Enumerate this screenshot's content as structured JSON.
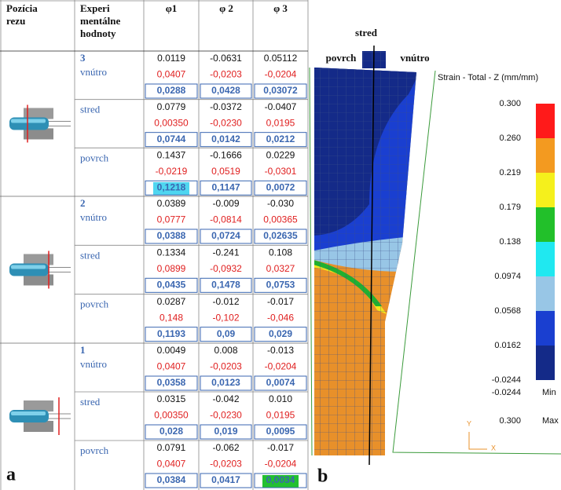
{
  "table": {
    "columns": [
      "Pozícia rezu",
      "Experi mentálne hodnoty",
      "φ1",
      "φ 2",
      "φ 3"
    ],
    "sections": [
      {
        "number": "3",
        "rows": [
          {
            "position": "vnútro",
            "lines": [
              [
                "0.0119",
                "-0.0631",
                "0.05112"
              ],
              [
                "0,0407",
                "-0,0203",
                "-0,0204"
              ],
              [
                "0,0288",
                "0,0428",
                "0,03072"
              ]
            ]
          },
          {
            "position": "stred",
            "lines": [
              [
                "0.0779",
                "-0.0372",
                "-0.0407"
              ],
              [
                "0,00350",
                "-0,0230",
                "0,0195"
              ],
              [
                "0,0744",
                "0,0142",
                "0,0212"
              ]
            ]
          },
          {
            "position": "povrch",
            "lines": [
              [
                "0.1437",
                "-0.1666",
                "0.0229"
              ],
              [
                "-0,0219",
                "0,0519",
                "-0,0301"
              ],
              [
                "0,1218",
                "0,1147",
                "0,0072"
              ]
            ]
          }
        ]
      },
      {
        "number": "2",
        "rows": [
          {
            "position": "vnútro",
            "lines": [
              [
                "0.0389",
                "-0.009",
                "-0.030"
              ],
              [
                "0,0777",
                "-0,0814",
                "0,00365"
              ],
              [
                "0,0388",
                "0,0724",
                "0,02635"
              ]
            ]
          },
          {
            "position": "stred",
            "lines": [
              [
                "0.1334",
                "-0.241",
                "0.108"
              ],
              [
                "0,0899",
                "-0,0932",
                "0,0327"
              ],
              [
                "0,0435",
                "0,1478",
                "0,0753"
              ]
            ]
          },
          {
            "position": "povrch",
            "lines": [
              [
                "0.0287",
                "-0.012",
                "-0.017"
              ],
              [
                "0,148",
                "-0,102",
                "-0,046"
              ],
              [
                "0,1193",
                "0,09",
                "0,029"
              ]
            ]
          }
        ]
      },
      {
        "number": "1",
        "rows": [
          {
            "position": "vnútro",
            "lines": [
              [
                "0.0049",
                "0.008",
                "-0.013"
              ],
              [
                "0,0407",
                "-0,0203",
                "-0,0204"
              ],
              [
                "0,0358",
                "0,0123",
                "0,0074"
              ]
            ]
          },
          {
            "position": "stred",
            "lines": [
              [
                "0.0315",
                "-0.042",
                "0.010"
              ],
              [
                "0,00350",
                "-0,0230",
                "0,0195"
              ],
              [
                "0,028",
                "0,019",
                "0,0095"
              ]
            ]
          },
          {
            "position": "povrch",
            "lines": [
              [
                "0.0791",
                "-0.062",
                "-0.017"
              ],
              [
                "0,0407",
                "-0,0203",
                "-0,0204"
              ],
              [
                "0,0384",
                "0,0417",
                "0,0034"
              ]
            ]
          }
        ]
      }
    ]
  },
  "simulation": {
    "labels": {
      "center": "stred",
      "surface": "povrch",
      "inner": "vnútro"
    },
    "legend_title": "Strain - Total - Z (mm/mm)",
    "legend_values": [
      "0.300",
      "0.260",
      "0.219",
      "0.179",
      "0.138",
      "0.0974",
      "0.0568",
      "0.0162",
      "-0.0244"
    ],
    "min_value": "-0.0244",
    "min_label": "Min",
    "max_value": "0.300",
    "max_label": "Max",
    "axis_y": "Y",
    "axis_x": "X"
  },
  "panel_labels": {
    "left": "a",
    "right": "b"
  }
}
